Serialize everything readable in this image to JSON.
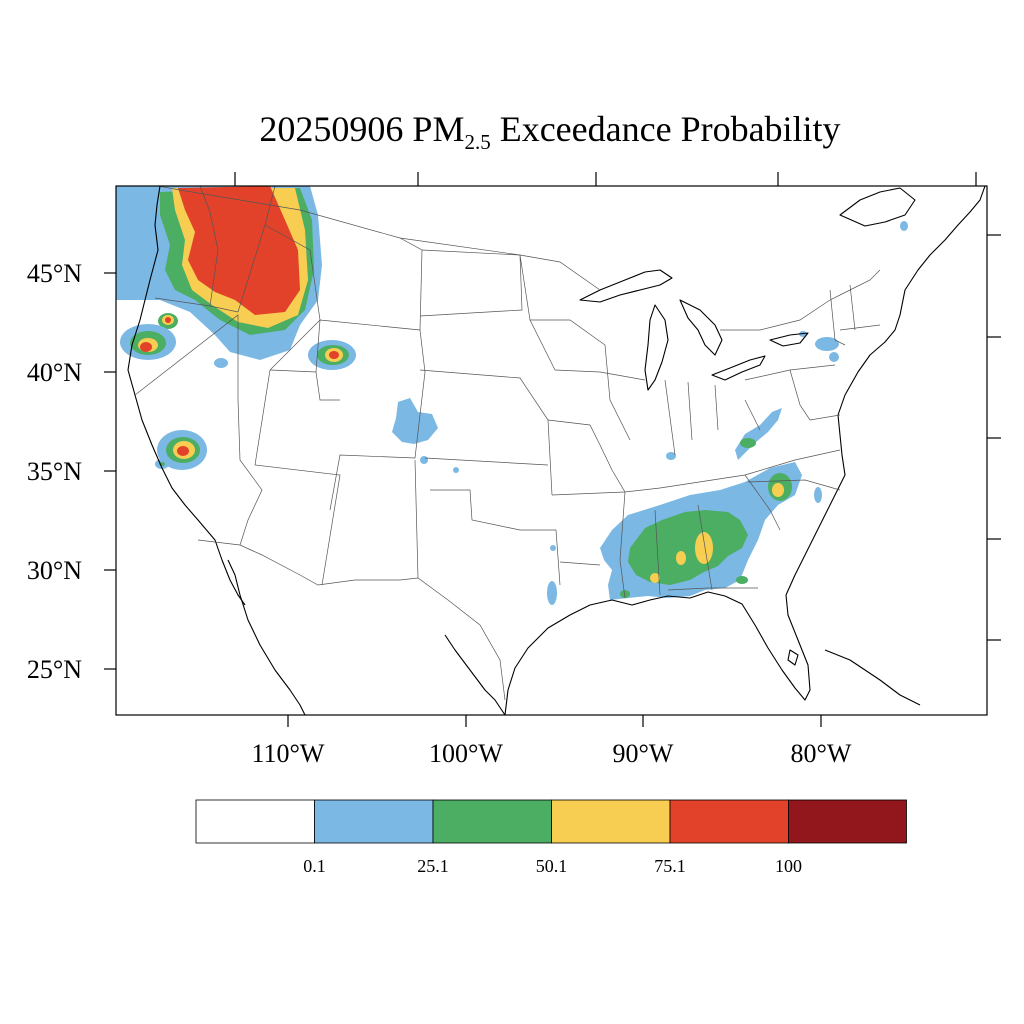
{
  "title": {
    "prefix": "20250906 PM",
    "subscript": "2.5",
    "suffix": " Exceedance Probability"
  },
  "map": {
    "lat_labels": [
      "45°N",
      "40°N",
      "35°N",
      "30°N",
      "25°N"
    ],
    "lon_labels": [
      "110°W",
      "100°W",
      "90°W",
      "80°W"
    ]
  },
  "legend": {
    "colors": [
      "#ffffff",
      "#7bb8e4",
      "#4bae63",
      "#f8ce52",
      "#e14229",
      "#92171c"
    ],
    "labels": [
      "0.1",
      "25.1",
      "50.1",
      "75.1",
      "100"
    ]
  }
}
